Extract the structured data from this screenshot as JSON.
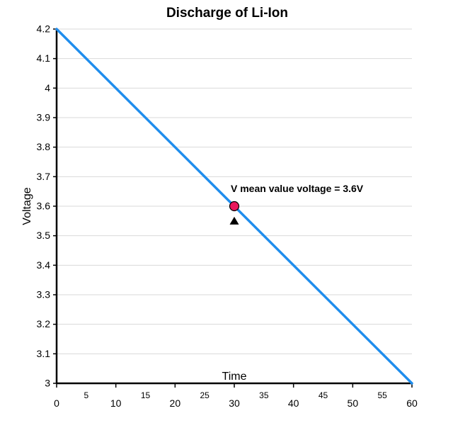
{
  "chart_data": {
    "type": "line",
    "title": "Discharge of Li-Ion",
    "xlabel": "Time",
    "ylabel": "Voltage",
    "xlim": [
      0,
      60
    ],
    "ylim": [
      3,
      4.2
    ],
    "x_ticks_major": [
      "0",
      "10",
      "20",
      "30",
      "40",
      "50",
      "60"
    ],
    "x_ticks_minor": [
      "5",
      "15",
      "25",
      "35",
      "45",
      "55"
    ],
    "y_ticks": [
      "3",
      "3.1",
      "3.2",
      "3.3",
      "3.4",
      "3.5",
      "3.6",
      "3.7",
      "3.8",
      "3.9",
      "4",
      "4.1",
      "4.2"
    ],
    "grid": true,
    "series": [
      {
        "x": [
          0,
          60
        ],
        "values": [
          4.2,
          3.0
        ],
        "color": "#1f8ded"
      }
    ],
    "highlight_point": {
      "x": 30,
      "y": 3.6,
      "color": "#e8175d",
      "label": "V mean value voltage = 3.6V"
    },
    "marker_triangle": {
      "x": 30,
      "y": 3.55
    }
  }
}
